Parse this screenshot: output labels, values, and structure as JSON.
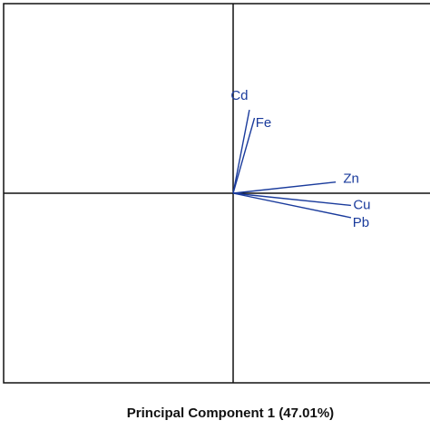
{
  "chart_data": {
    "type": "biplot",
    "xlabel": "Principal Component 1 (47.01%)",
    "ylabel": "",
    "xlim": [
      -1,
      1
    ],
    "ylim": [
      -1,
      1
    ],
    "origin": [
      0,
      0
    ],
    "grid": false,
    "vectors": [
      {
        "name": "Cd",
        "x": 0.16,
        "y": 0.82
      },
      {
        "name": "Fe",
        "x": 0.21,
        "y": 0.74
      },
      {
        "name": "Zn",
        "x": 1.01,
        "y": 0.11
      },
      {
        "name": "Cu",
        "x": 1.16,
        "y": -0.12
      },
      {
        "name": "Pb",
        "x": 1.16,
        "y": -0.24
      }
    ]
  },
  "colors": {
    "vector": "#1a3b9c",
    "label": "#1a3b9c",
    "frame": "#111111",
    "axis": "#111111"
  }
}
